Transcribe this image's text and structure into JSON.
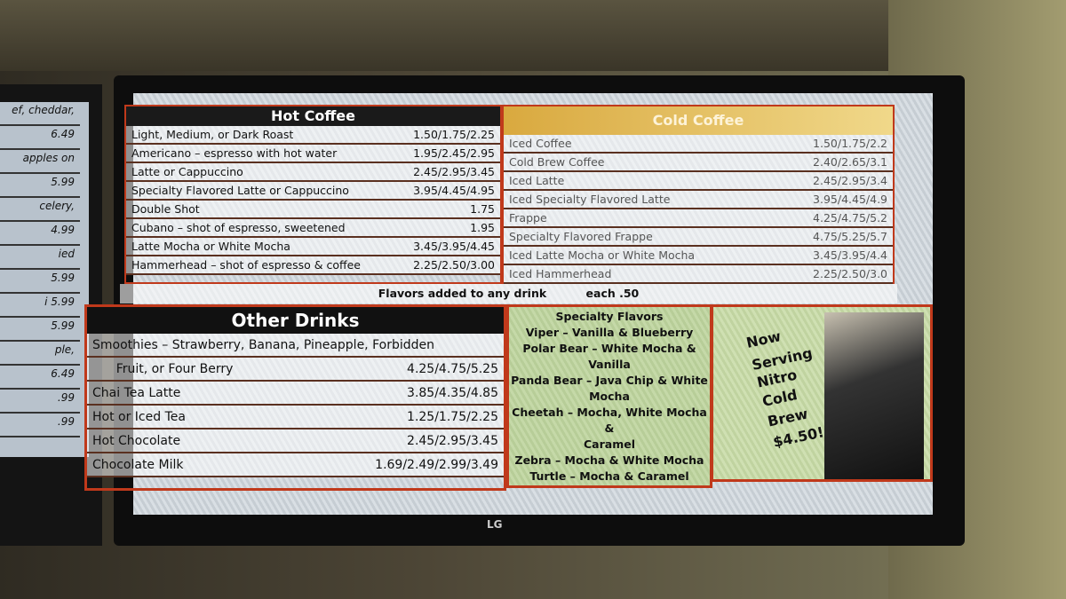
{
  "left_screen": {
    "items": [
      "ef, cheddar,",
      "6.49",
      "apples on",
      "5.99",
      "celery,",
      "4.99",
      "ied",
      "5.99",
      "i 5.99",
      "5.99",
      "ple,",
      "6.49",
      ".99",
      ".99"
    ]
  },
  "hot_coffee": {
    "title": "Hot Coffee",
    "rows": [
      {
        "name": "Light, Medium, or Dark Roast",
        "price": "1.50/1.75/2.25"
      },
      {
        "name": "Americano – espresso with hot water",
        "price": "1.95/2.45/2.95"
      },
      {
        "name": "Latte or Cappuccino",
        "price": "2.45/2.95/3.45"
      },
      {
        "name": "Specialty Flavored Latte or Cappuccino",
        "price": "3.95/4.45/4.95"
      },
      {
        "name": "Double Shot",
        "price": "1.75"
      },
      {
        "name": "Cubano – shot of espresso, sweetened",
        "price": "1.95"
      },
      {
        "name": "Latte Mocha or White Mocha",
        "price": "3.45/3.95/4.45"
      },
      {
        "name": "Hammerhead – shot of espresso & coffee",
        "price": "2.25/2.50/3.00"
      }
    ]
  },
  "cold_coffee": {
    "title": "Cold Coffee",
    "rows": [
      {
        "name": "Iced Coffee",
        "price": "1.50/1.75/2.2"
      },
      {
        "name": "Cold Brew Coffee",
        "price": "2.40/2.65/3.1"
      },
      {
        "name": "Iced Latte",
        "price": "2.45/2.95/3.4"
      },
      {
        "name": "Iced Specialty Flavored Latte",
        "price": "3.95/4.45/4.9"
      },
      {
        "name": "Frappe",
        "price": "4.25/4.75/5.2"
      },
      {
        "name": "Specialty Flavored Frappe",
        "price": "4.75/5.25/5.7"
      },
      {
        "name": "Iced Latte Mocha or White Mocha",
        "price": "3.45/3.95/4.4"
      },
      {
        "name": "Iced Hammerhead",
        "price": "2.25/2.50/3.0"
      }
    ]
  },
  "flavors_note": {
    "text": "Flavors added to any drink",
    "price": "each .50"
  },
  "other_drinks": {
    "title": "Other Drinks",
    "rows": [
      {
        "name": "Smoothies – Strawberry, Banana, Pineapple, Forbidden",
        "price": ""
      },
      {
        "name": "      Fruit, or Four Berry",
        "price": "4.25/4.75/5.25"
      },
      {
        "name": "Chai Tea Latte",
        "price": "3.85/4.35/4.85"
      },
      {
        "name": "Hot or Iced Tea",
        "price": "1.25/1.75/2.25"
      },
      {
        "name": "Hot Chocolate",
        "price": "2.45/2.95/3.45"
      },
      {
        "name": "Chocolate Milk",
        "price": "1.69/2.49/2.99/3.49"
      }
    ]
  },
  "specialty_flavors": {
    "lines": [
      "Specialty Flavors",
      "Viper – Vanilla & Blueberry",
      "Polar Bear – White Mocha &",
      "Vanilla",
      "Panda Bear – Java Chip & White",
      "Mocha",
      "Cheetah – Mocha, White Mocha &",
      "Caramel",
      "Zebra – Mocha & White Mocha",
      "Turtle – Mocha & Caramel"
    ]
  },
  "nitro": {
    "lines": [
      "Now",
      "Serving",
      "Nitro",
      "Cold",
      "Brew",
      "$4.50!"
    ]
  },
  "tv_brand": "LG"
}
